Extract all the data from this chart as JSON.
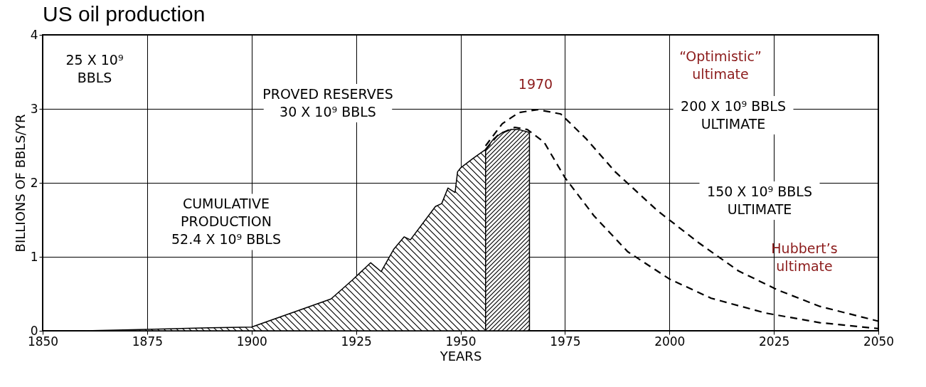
{
  "chart_data": {
    "type": "area",
    "title": "US oil production",
    "xlabel": "YEARS",
    "ylabel": "BILLIONS OF BBLS/YR",
    "xlim": [
      1850,
      2050
    ],
    "xticks": [
      1850,
      1875,
      1900,
      1925,
      1950,
      1975,
      2000,
      2025,
      2050
    ],
    "ylim": [
      0,
      4
    ],
    "yticks": [
      0,
      1,
      2,
      3,
      4
    ],
    "grid": true,
    "series": [
      {
        "color": "#000000",
        "x": [
          1860,
          1875,
          1890,
          1900,
          1919,
          1924,
          1928.5,
          1931,
          1934,
          1936.5,
          1938,
          1944,
          1945.5,
          1947,
          1948.7,
          1949.3,
          1950,
          1953,
          1956
        ],
        "values": [
          0,
          0.02,
          0.04,
          0.05,
          0.43,
          0.68,
          0.92,
          0.8,
          1.1,
          1.27,
          1.23,
          1.68,
          1.72,
          1.93,
          1.87,
          2.15,
          2.2,
          2.33,
          2.45
        ]
      },
      {
        "type": "area",
        "color": "#000000",
        "x": [
          1956,
          1958,
          1960,
          1962,
          1964,
          1966.5
        ],
        "values": [
          2.45,
          2.6,
          2.68,
          2.72,
          2.72,
          2.68
        ]
      },
      {
        "type": "line",
        "line_style": "dashed",
        "color": "#000000",
        "x": [
          1956,
          1959,
          1963,
          1966,
          1970,
          1975,
          1982,
          1990,
          2000,
          2010,
          2023,
          2036,
          2050
        ],
        "values": [
          2.45,
          2.65,
          2.75,
          2.72,
          2.55,
          2.07,
          1.55,
          1.07,
          0.7,
          0.44,
          0.24,
          0.11,
          0.03
        ]
      },
      {
        "type": "line",
        "line_style": "dashed",
        "color": "#000000",
        "x": [
          1956,
          1960,
          1964,
          1968.5,
          1974,
          1980,
          1987,
          1997,
          2007,
          2016.5,
          2026,
          2036,
          2050
        ],
        "values": [
          2.5,
          2.8,
          2.95,
          2.99,
          2.93,
          2.6,
          2.15,
          1.63,
          1.19,
          0.81,
          0.55,
          0.33,
          0.13
        ]
      }
    ],
    "annotations": [
      "25 X 10⁹\nBBLS",
      "PROVED RESERVES\n30 X 10⁹ BBLS",
      "CUMULATIVE\nPRODUCTION\n52.4 X 10⁹ BBLS",
      "200 X 10⁹ BBLS\nULTIMATE",
      "150 X 10⁹ BBLS\nULTIMATE",
      "1970",
      "“Optimistic”\nultimate",
      "Hubbert’s\nultimate"
    ]
  }
}
